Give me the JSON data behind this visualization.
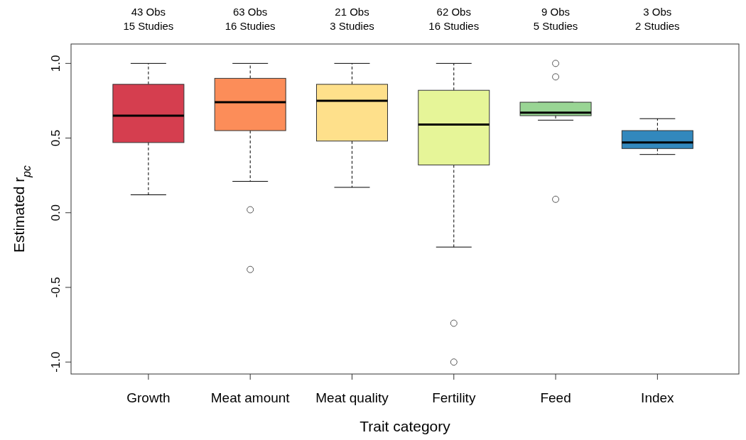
{
  "chart_data": {
    "type": "box",
    "xlabel": "Trait category",
    "ylabel": "Estimated r$_{pc}$",
    "categories": [
      "Growth",
      "Meat amount",
      "Meat quality",
      "Fertility",
      "Feed",
      "Index"
    ],
    "colors": [
      "#d53e4f",
      "#fc8d59",
      "#fee08b",
      "#e6f598",
      "#99d594",
      "#3288bd"
    ],
    "boxes": [
      {
        "low": 0.12,
        "q1": 0.47,
        "median": 0.65,
        "q3": 0.86,
        "high": 1.0
      },
      {
        "low": 0.21,
        "q1": 0.55,
        "median": 0.74,
        "q3": 0.9,
        "high": 1.0,
        "outliers": [
          0.02,
          -0.38
        ]
      },
      {
        "low": 0.17,
        "q1": 0.48,
        "median": 0.75,
        "q3": 0.86,
        "high": 1.0
      },
      {
        "low": -0.23,
        "q1": 0.32,
        "median": 0.59,
        "q3": 0.82,
        "high": 1.0,
        "outliers": [
          -0.74,
          -1.0
        ]
      },
      {
        "low": 0.62,
        "q1": 0.65,
        "median": 0.67,
        "q3": 0.74,
        "high": 0.74,
        "outliers": [
          1.0,
          0.91,
          0.09
        ]
      },
      {
        "low": 0.39,
        "q1": 0.43,
        "median": 0.47,
        "q3": 0.55,
        "high": 0.63
      }
    ],
    "ylim": [
      -1.08,
      1.13
    ],
    "yticks": [
      {
        "value": -1,
        "label": "-1.0"
      },
      {
        "value": -0.5,
        "label": "-0.5"
      },
      {
        "value": 0,
        "label": "0.0"
      },
      {
        "value": 0.5,
        "label": "0.5"
      },
      {
        "value": 1,
        "label": "1.0"
      }
    ],
    "grid": false,
    "annotations": [
      "43 Obs\n15 Studies",
      "63 Obs\n16 Studies",
      "21 Obs\n3 Studies",
      "62 Obs\n16 Studies",
      "9 Obs\n5 Studies",
      "3 Obs\n2 Studies"
    ]
  }
}
